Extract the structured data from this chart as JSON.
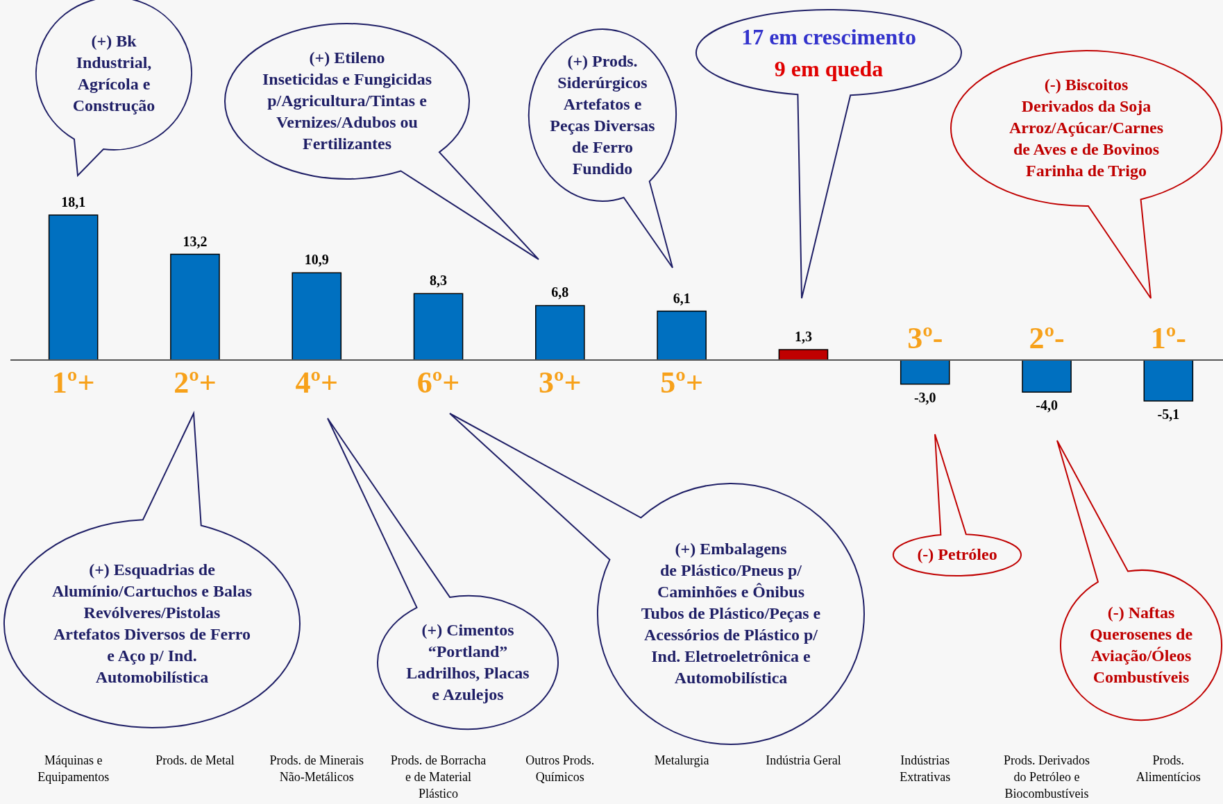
{
  "chart_data": {
    "type": "bar",
    "categories": [
      "Máquinas e Equipamentos",
      "Prods. de Metal",
      "Prods. de Minerais Não-Metálicos",
      "Prods. de Borracha e de Material Plástico",
      "Outros Prods. Químicos",
      "Metalurgia",
      "Indústria Geral",
      "Indústrias Extrativas",
      "Prods. Derivados do Petróleo e Biocombustíveis",
      "Prods. Alimentícios"
    ],
    "values": [
      18.1,
      13.2,
      10.9,
      8.3,
      6.8,
      6.1,
      1.3,
      -3.0,
      -4.0,
      -5.1
    ],
    "colors": [
      "#0070c0",
      "#0070c0",
      "#0070c0",
      "#0070c0",
      "#0070c0",
      "#0070c0",
      "#c00000",
      "#0070c0",
      "#0070c0",
      "#0070c0"
    ],
    "value_labels": [
      "18,1",
      "13,2",
      "10,9",
      "8,3",
      "6,8",
      "6,1",
      "1,3",
      "-3,0",
      "-4,0",
      "-5,1"
    ],
    "annotations": [
      "1º+",
      "2º+",
      "4º+",
      "6º+",
      "3º+",
      "5º+",
      "3º-",
      "2º-",
      "1º-",
      "(+) Bk\nIndustrial,\nAgrícola e\nConstrução",
      "(+) Etileno\nInseticidas e Fungicidas\np/Agricultura/Tintas e\nVernizes/Adubos ou\nFertilizantes",
      "(+) Prods.\nSiderúrgicos\nArtefatos e\nPeças Diversas\nde Ferro\nFundido",
      "(-) Biscoitos\nDerivados da Soja\nArroz/Açúcar/Carnes\nde Aves e de Bovinos\nFarinha de Trigo",
      "(+) Esquadrias de\nAlumínio/Cartuchos e Balas\nRevólveres/Pistolas\nArtefatos Diversos de Ferro\ne Aço p/ Ind.\nAutomobilística",
      "(+) Cimentos\n“Portland”\nLadrilhos, Placas\ne Azulejos",
      "(+) Embalagens\nde Plástico/Pneus p/\nCaminhões e Ônibus\nTubos de Plástico/Peças e\nAcessórios de Plástico p/\nInd. Eletroeletrônica e\nAutomobilística",
      "(-) Petróleo",
      "(-) Naftas\nQuerosenes de\nAviação/Óleos\nCombustíveis",
      "17 em crescimento",
      "9 em queda"
    ]
  }
}
